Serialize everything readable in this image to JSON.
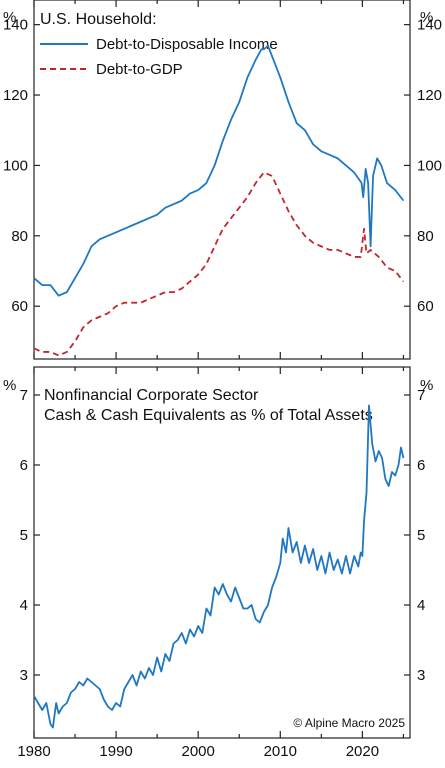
{
  "chart_data": [
    {
      "type": "line",
      "title": "U.S. Household:",
      "ylabel_left": "%",
      "ylabel_right": "%",
      "ylim": [
        45,
        147
      ],
      "xlim": [
        1980,
        2025.8
      ],
      "y_ticks": [
        "60",
        "80",
        "100",
        "120",
        "140"
      ],
      "y_tick_values": [
        60,
        80,
        100,
        120,
        140
      ],
      "legend_position": "top-left",
      "series": [
        {
          "name": "Debt-to-Disposable Income",
          "color": "#1f78c1",
          "style": "solid",
          "x": [
            1980,
            1981,
            1982,
            1983,
            1984,
            1985,
            1986,
            1987,
            1988,
            1989,
            1990,
            1991,
            1992,
            1993,
            1994,
            1995,
            1996,
            1997,
            1998,
            1999,
            2000,
            2001,
            2002,
            2003,
            2004,
            2005,
            2006,
            2007,
            2007.7,
            2008,
            2008.5,
            2009,
            2010,
            2011,
            2012,
            2013,
            2014,
            2015,
            2016,
            2017,
            2018,
            2019,
            2019.9,
            2020.1,
            2020.4,
            2020.7,
            2021.0,
            2021.3,
            2021.8,
            2022.3,
            2023,
            2024,
            2025
          ],
          "values": [
            68,
            66,
            66,
            63,
            64,
            68,
            72,
            77,
            79,
            80,
            81,
            82,
            83,
            84,
            85,
            86,
            88,
            89,
            90,
            92,
            93,
            95,
            100,
            107,
            113,
            118,
            125,
            130,
            133,
            133,
            134,
            131,
            125,
            118,
            112,
            110,
            106,
            104,
            103,
            102,
            100,
            98,
            95,
            91,
            99,
            95,
            77,
            97,
            102,
            100,
            95,
            93,
            90
          ]
        },
        {
          "name": "Debt-to-GDP",
          "color": "#c1272d",
          "style": "dashed",
          "x": [
            1980,
            1981,
            1982,
            1983,
            1984,
            1985,
            1986,
            1987,
            1988,
            1989,
            1990,
            1991,
            1992,
            1993,
            1994,
            1995,
            1996,
            1997,
            1998,
            1999,
            2000,
            2001,
            2002,
            2003,
            2004,
            2005,
            2006,
            2007,
            2008,
            2009,
            2010,
            2011,
            2012,
            2013,
            2014,
            2015,
            2016,
            2017,
            2018,
            2019,
            2019.8,
            2020.2,
            2020.5,
            2021,
            2022,
            2023,
            2024,
            2025
          ],
          "values": [
            48,
            47,
            47,
            46,
            47,
            50,
            54,
            56,
            57,
            58,
            60,
            61,
            61,
            61,
            62,
            63,
            64,
            64,
            65,
            67,
            69,
            72,
            77,
            82,
            85,
            88,
            91,
            95,
            98,
            97,
            92,
            87,
            83,
            80,
            78,
            77,
            76,
            76,
            75,
            74,
            74,
            82,
            75,
            76,
            74,
            71,
            70,
            67
          ]
        }
      ]
    },
    {
      "type": "line",
      "title": "Nonfinancial Corporate Sector",
      "subtitle": "Cash & Cash Equivalents as % of Total Assets",
      "ylabel_left": "%",
      "ylabel_right": "%",
      "ylim": [
        2.1,
        7.4
      ],
      "xlim": [
        1980,
        2025.8
      ],
      "y_ticks": [
        "3",
        "4",
        "5",
        "6",
        "7"
      ],
      "y_tick_values": [
        3,
        4,
        5,
        6,
        7
      ],
      "x_ticks": [
        "1980",
        "1990",
        "2000",
        "2010",
        "2020"
      ],
      "x_tick_values": [
        1980,
        1990,
        2000,
        2010,
        2020
      ],
      "annotation": "© Alpine Macro 2025",
      "series": [
        {
          "name": "",
          "color": "#1f78c1",
          "style": "solid",
          "x": [
            1980,
            1980.5,
            1981,
            1981.5,
            1982,
            1982.3,
            1982.7,
            1983,
            1983.5,
            1984,
            1984.5,
            1985,
            1985.5,
            1986,
            1986.5,
            1987,
            1987.5,
            1988,
            1988.5,
            1989,
            1989.5,
            1990,
            1990.5,
            1991,
            1991.5,
            1992,
            1992.5,
            1993,
            1993.5,
            1994,
            1994.5,
            1995,
            1995.5,
            1996,
            1996.5,
            1997,
            1997.5,
            1998,
            1998.5,
            1999,
            1999.5,
            2000,
            2000.5,
            2001,
            2001.5,
            2002,
            2002.5,
            2003,
            2003.5,
            2004,
            2004.5,
            2005,
            2005.5,
            2006,
            2006.5,
            2007,
            2007.5,
            2008,
            2008.5,
            2009,
            2009.5,
            2010,
            2010.3,
            2010.7,
            2011,
            2011.5,
            2012,
            2012.5,
            2013,
            2013.5,
            2014,
            2014.5,
            2015,
            2015.5,
            2016,
            2016.5,
            2017,
            2017.5,
            2018,
            2018.5,
            2019,
            2019.5,
            2019.8,
            2020.0,
            2020.2,
            2020.5,
            2020.8,
            2021.2,
            2021.6,
            2022,
            2022.4,
            2022.8,
            2023.2,
            2023.6,
            2024,
            2024.4,
            2024.7,
            2025
          ],
          "values": [
            2.7,
            2.6,
            2.5,
            2.6,
            2.3,
            2.25,
            2.6,
            2.45,
            2.55,
            2.6,
            2.75,
            2.8,
            2.9,
            2.85,
            2.95,
            2.9,
            2.85,
            2.8,
            2.65,
            2.55,
            2.5,
            2.6,
            2.55,
            2.8,
            2.9,
            3.0,
            2.85,
            3.05,
            2.95,
            3.1,
            3.0,
            3.25,
            3.05,
            3.3,
            3.2,
            3.45,
            3.5,
            3.6,
            3.45,
            3.65,
            3.55,
            3.7,
            3.6,
            3.95,
            3.85,
            4.25,
            4.15,
            4.3,
            4.15,
            4.05,
            4.25,
            4.1,
            3.95,
            3.95,
            4.0,
            3.8,
            3.75,
            3.9,
            4.0,
            4.25,
            4.4,
            4.6,
            4.95,
            4.75,
            5.1,
            4.75,
            4.9,
            4.6,
            4.85,
            4.6,
            4.8,
            4.5,
            4.7,
            4.45,
            4.75,
            4.5,
            4.65,
            4.45,
            4.7,
            4.45,
            4.7,
            4.55,
            4.75,
            4.7,
            5.2,
            5.6,
            6.85,
            6.3,
            6.05,
            6.2,
            6.1,
            5.8,
            5.7,
            5.9,
            5.85,
            6.0,
            6.25,
            6.1
          ]
        }
      ]
    }
  ]
}
